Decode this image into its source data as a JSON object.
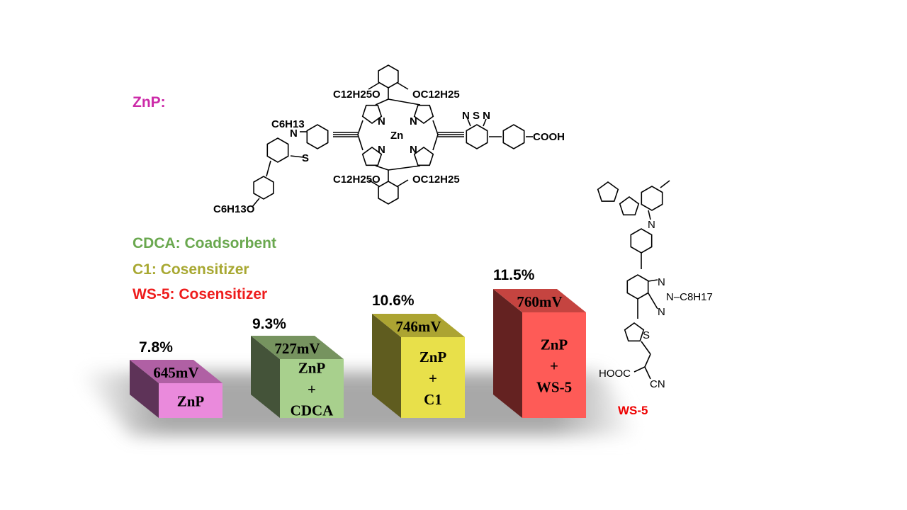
{
  "zn_label": "ZnP:",
  "legend": [
    {
      "text": "CDCA: Coadsorbent",
      "color": "#6aa84f"
    },
    {
      "text": "C1: Cosensitizer",
      "color": "#a8a832"
    },
    {
      "text": "WS-5: Cosensitizer",
      "color": "#ee1c1c"
    }
  ],
  "bars": [
    {
      "efficiency": "7.8%",
      "voc": "645mV",
      "label": [
        "ZnP"
      ],
      "front": "#ea8adc",
      "top": "#b060a4",
      "side": "#5e3358"
    },
    {
      "efficiency": "9.3%",
      "voc": "727mV",
      "label": [
        "ZnP",
        "+",
        "CDCA"
      ],
      "front": "#a8d08d",
      "top": "#76935f",
      "side": "#445339"
    },
    {
      "efficiency": "10.6%",
      "voc": "746mV",
      "label": [
        "ZnP",
        "+",
        "C1"
      ],
      "front": "#e8e04a",
      "top": "#aca432",
      "side": "#5f5c1f"
    },
    {
      "efficiency": "11.5%",
      "voc": "760mV",
      "label": [
        "ZnP",
        "+",
        "WS-5"
      ],
      "front": "#fe5b57",
      "top": "#c54440",
      "side": "#642221"
    }
  ],
  "znp_structure": {
    "sub_tl": "C12H25O",
    "sub_tr": "OC12H25",
    "sub_bl": "C12H25O",
    "sub_br": "OC12H25",
    "metal": "Zn",
    "n": "N",
    "hexyl": "C6H13",
    "s": "S",
    "hexyloxy": "C6H13O",
    "btd": "N S N",
    "acid": "COOH"
  },
  "ws5_structure": {
    "n": "N",
    "alkyl": "N–C8H17",
    "s": "S",
    "acid": "HOOC",
    "cn": "CN",
    "name": "WS-5"
  }
}
